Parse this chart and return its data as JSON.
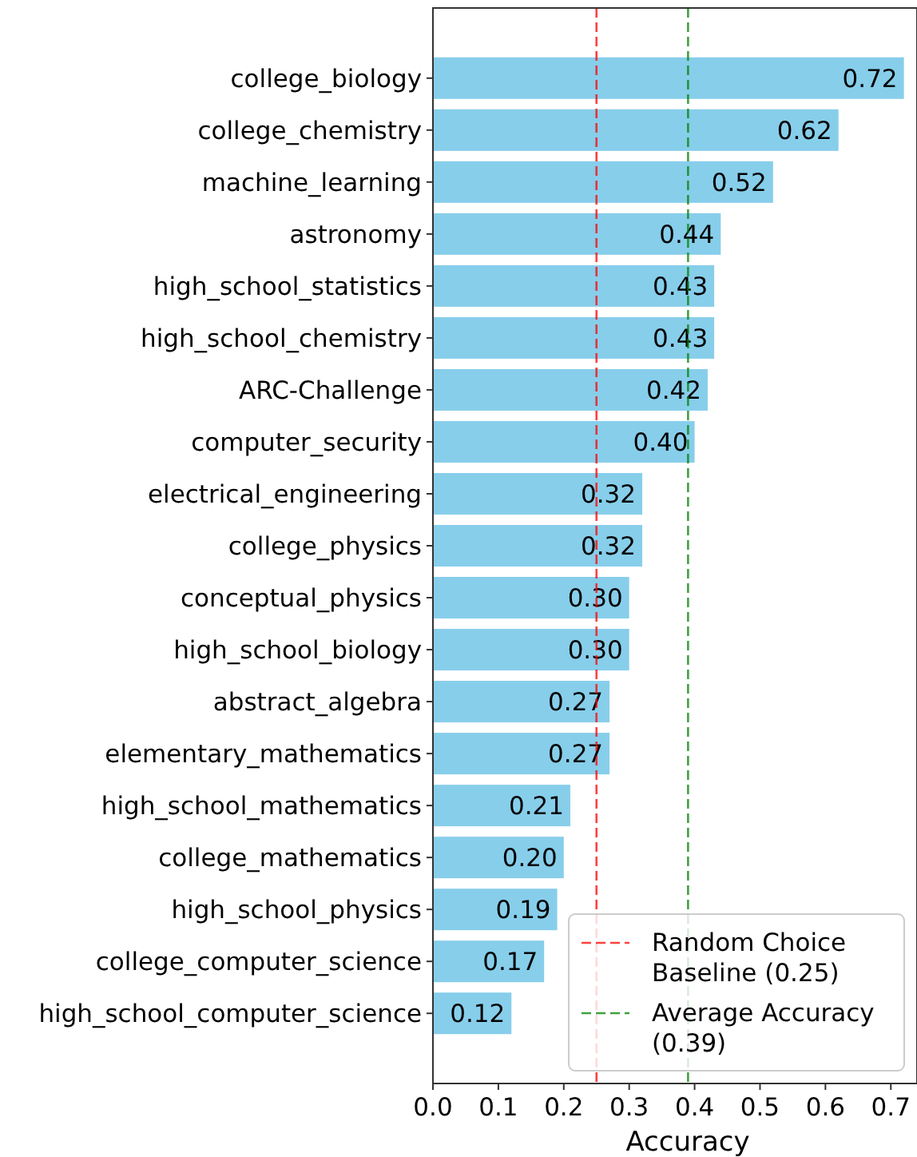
{
  "chart_data": {
    "type": "bar",
    "orientation": "horizontal",
    "xlabel": "Accuracy",
    "categories": [
      "college_biology",
      "college_chemistry",
      "machine_learning",
      "astronomy",
      "high_school_statistics",
      "high_school_chemistry",
      "ARC-Challenge",
      "computer_security",
      "electrical_engineering",
      "college_physics",
      "conceptual_physics",
      "high_school_biology",
      "abstract_algebra",
      "elementary_mathematics",
      "high_school_mathematics",
      "college_mathematics",
      "high_school_physics",
      "college_computer_science",
      "high_school_computer_science"
    ],
    "values": [
      0.72,
      0.62,
      0.52,
      0.44,
      0.43,
      0.43,
      0.42,
      0.4,
      0.32,
      0.32,
      0.3,
      0.3,
      0.27,
      0.27,
      0.21,
      0.2,
      0.19,
      0.17,
      0.12
    ],
    "color": "#87ceeb",
    "value_labels": [
      "0.72",
      "0.62",
      "0.52",
      "0.44",
      "0.43",
      "0.43",
      "0.42",
      "0.40",
      "0.32",
      "0.32",
      "0.30",
      "0.30",
      "0.27",
      "0.27",
      "0.21",
      "0.20",
      "0.19",
      "0.17",
      "0.12"
    ],
    "xlim": [
      0,
      0.74
    ],
    "xticks": [
      {
        "value": 0,
        "label": "0.0"
      },
      0.1,
      0.2,
      0.3,
      0.4,
      0.5,
      0.6,
      0.7
    ],
    "ref_lines": [
      {
        "axis": "x",
        "value": 0.25,
        "label": "Random Choice\nBaseline (0.25)",
        "color": "#ff0000",
        "line_style": "dashed"
      },
      {
        "axis": "x",
        "value": 0.39,
        "label": "Average Accuracy\n(0.39)",
        "color": "#008000",
        "line_style": "dashed"
      }
    ],
    "legend": "bottom right"
  }
}
